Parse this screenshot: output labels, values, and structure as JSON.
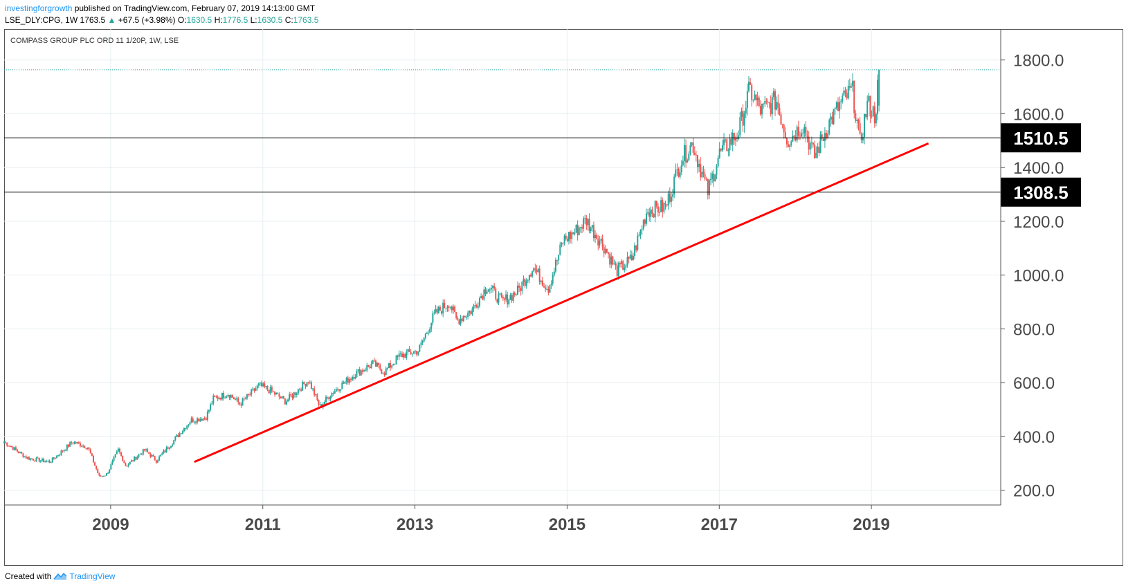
{
  "header": {
    "author": "investingforgrowth",
    "published_text": "published on TradingView.com, February 07, 2019 14:13:00 GMT",
    "symbol": "LSE_DLY:CPG, 1W",
    "last": "1763.5",
    "change": "+67.5 (+3.98%)",
    "o_label": "O:",
    "o_value": "1630.5",
    "h_label": "H:",
    "h_value": "1776.5",
    "l_label": "L:",
    "l_value": "1630.5",
    "c_label": "C:",
    "c_value": "1763.5"
  },
  "footer": {
    "prefix": "Created with",
    "brand": "TradingView"
  },
  "colors": {
    "up": "#26a69a",
    "down": "#ef5350",
    "trendline": "#ff0000",
    "grid": "#e6eef1",
    "axis_text": "#4a4a4a"
  },
  "chart_data": {
    "type": "candlestick",
    "title": "COMPASS GROUP PLC ORD 11 1/20P, 1W, LSE",
    "ylim": [
      145,
      1915
    ],
    "xlim": [
      2007.6,
      2020.7
    ],
    "yticks": [
      200,
      400,
      600,
      800,
      1000,
      1200,
      1400,
      1600,
      1800
    ],
    "ytick_labels": [
      "200.0",
      "400.0",
      "600.0",
      "800.0",
      "1000.0",
      "1200.0",
      "1400.0",
      "1600.0",
      "1800.0"
    ],
    "xticks": [
      2009,
      2011,
      2013,
      2015,
      2017,
      2019
    ],
    "xtick_labels": [
      "2009",
      "2011",
      "2013",
      "2015",
      "2017",
      "2019"
    ],
    "last_price": 1763.5,
    "horizontal_lines": [
      {
        "value": 1510.5,
        "label": "1510.5"
      },
      {
        "value": 1308.5,
        "label": "1308.5"
      }
    ],
    "trendline": {
      "from": [
        2010.1,
        305
      ],
      "to": [
        2019.75,
        1490
      ]
    },
    "series": [
      {
        "points": [
          [
            2007.6,
            380
          ],
          [
            2007.9,
            320
          ],
          [
            2008.2,
            305
          ],
          [
            2008.5,
            380
          ],
          [
            2008.7,
            360
          ],
          [
            2008.85,
            250
          ],
          [
            2008.95,
            260
          ],
          [
            2009.1,
            350
          ],
          [
            2009.2,
            290
          ],
          [
            2009.45,
            350
          ],
          [
            2009.6,
            310
          ],
          [
            2009.8,
            375
          ],
          [
            2010.05,
            460
          ],
          [
            2010.25,
            470
          ],
          [
            2010.35,
            540
          ],
          [
            2010.55,
            560
          ],
          [
            2010.7,
            520
          ],
          [
            2010.95,
            590
          ],
          [
            2011.1,
            570
          ],
          [
            2011.3,
            530
          ],
          [
            2011.6,
            610
          ],
          [
            2011.75,
            510
          ],
          [
            2011.9,
            560
          ],
          [
            2012.2,
            630
          ],
          [
            2012.45,
            670
          ],
          [
            2012.6,
            640
          ],
          [
            2012.8,
            700
          ],
          [
            2013.05,
            720
          ],
          [
            2013.25,
            850
          ],
          [
            2013.45,
            900
          ],
          [
            2013.55,
            830
          ],
          [
            2013.75,
            870
          ],
          [
            2013.95,
            960
          ],
          [
            2014.15,
            900
          ],
          [
            2014.35,
            940
          ],
          [
            2014.55,
            1030
          ],
          [
            2014.75,
            950
          ],
          [
            2014.95,
            1130
          ],
          [
            2015.1,
            1160
          ],
          [
            2015.25,
            1205
          ],
          [
            2015.5,
            1100
          ],
          [
            2015.65,
            1015
          ],
          [
            2015.85,
            1060
          ],
          [
            2016.05,
            1240
          ],
          [
            2016.3,
            1255
          ],
          [
            2016.5,
            1430
          ],
          [
            2016.65,
            1490
          ],
          [
            2016.85,
            1310
          ],
          [
            2017.0,
            1450
          ],
          [
            2017.25,
            1530
          ],
          [
            2017.4,
            1690
          ],
          [
            2017.55,
            1610
          ],
          [
            2017.75,
            1650
          ],
          [
            2017.9,
            1500
          ],
          [
            2018.1,
            1560
          ],
          [
            2018.25,
            1440
          ],
          [
            2018.45,
            1570
          ],
          [
            2018.6,
            1640
          ],
          [
            2018.75,
            1690
          ],
          [
            2018.85,
            1490
          ],
          [
            2018.95,
            1640
          ],
          [
            2019.05,
            1590
          ],
          [
            2019.1,
            1763.5
          ]
        ]
      }
    ]
  }
}
